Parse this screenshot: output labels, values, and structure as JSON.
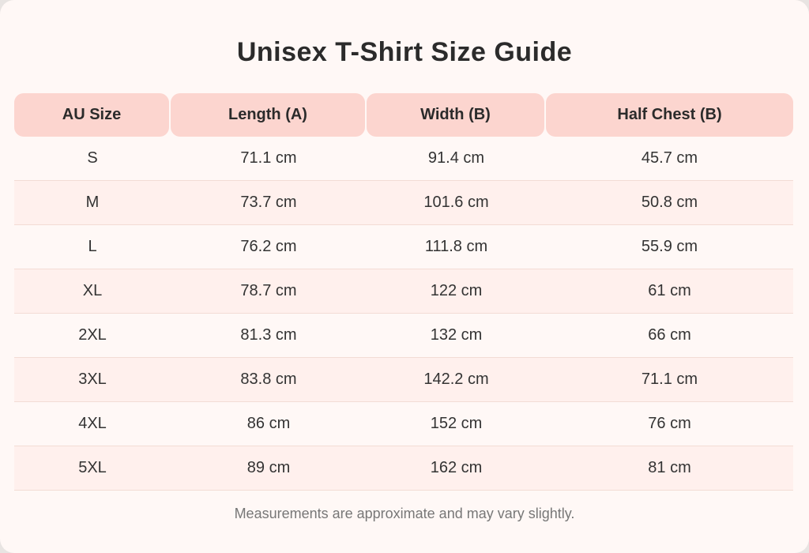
{
  "title": "Unisex T-Shirt Size Guide",
  "headers": [
    "AU Size",
    "Length (A)",
    "Width (B)",
    "Half Chest (B)"
  ],
  "rows": [
    [
      "S",
      "71.1 cm",
      "91.4 cm",
      "45.7 cm"
    ],
    [
      "M",
      "73.7 cm",
      "101.6 cm",
      "50.8 cm"
    ],
    [
      "L",
      "76.2 cm",
      "111.8 cm",
      "55.9 cm"
    ],
    [
      "XL",
      "78.7 cm",
      "122 cm",
      "61 cm"
    ],
    [
      "2XL",
      "81.3 cm",
      "132 cm",
      "66 cm"
    ],
    [
      "3XL",
      "83.8 cm",
      "142.2 cm",
      "71.1 cm"
    ],
    [
      "4XL",
      "86 cm",
      "152 cm",
      "76 cm"
    ],
    [
      "5XL",
      "89 cm",
      "162 cm",
      "81 cm"
    ]
  ],
  "note": "Measurements are approximate and may vary slightly.",
  "colors": {
    "header_bg": "#fcd5cf",
    "alt_row_bg": "#fff0ed",
    "card_bg": "#fff8f6"
  }
}
